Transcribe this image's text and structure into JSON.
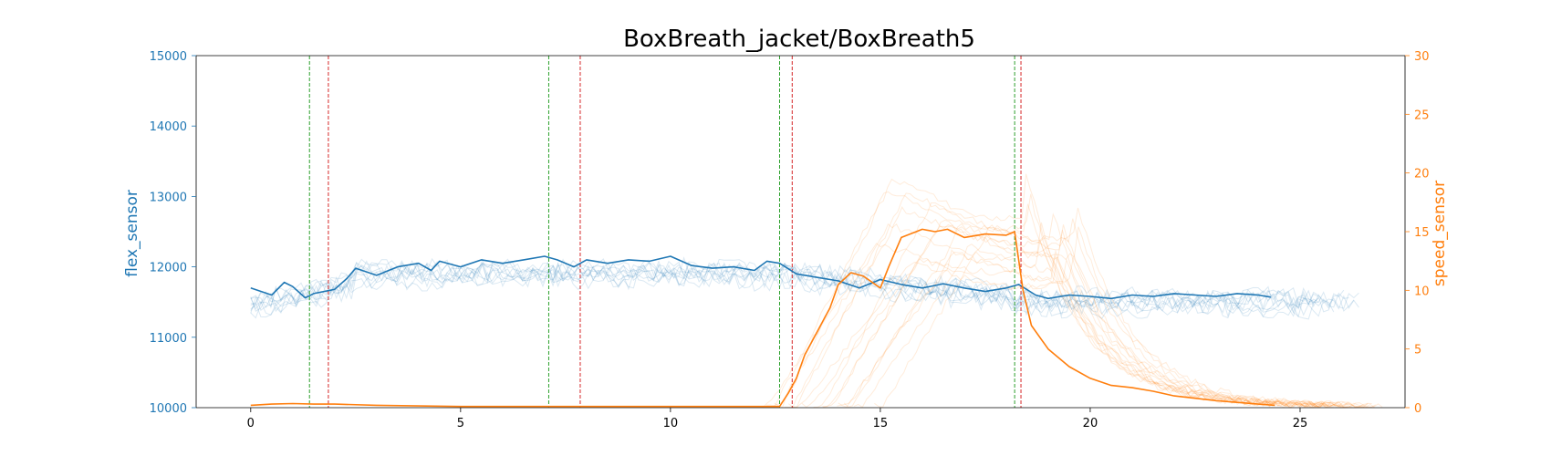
{
  "chart_data": {
    "type": "line",
    "title": "BoxBreath_jacket/BoxBreath5",
    "xlabel": "",
    "ylabel_left": "flex_sensor",
    "ylabel_right": "speed_sensor",
    "xlim": [
      -1.3,
      27.5
    ],
    "ylim_left": [
      10000,
      15000
    ],
    "ylim_right": [
      0,
      30
    ],
    "x_ticks": [
      0,
      5,
      10,
      15,
      20,
      25
    ],
    "y_left_ticks": [
      10000,
      11000,
      12000,
      13000,
      14000,
      15000
    ],
    "y_right_ticks": [
      0,
      5,
      10,
      15,
      20,
      25,
      30
    ],
    "grid": false,
    "colors": {
      "flex": "#1f77b4",
      "speed": "#ff7f0e",
      "start_marker": "#2ca02c",
      "end_marker": "#d62728",
      "spine": "#000000"
    },
    "markers_green": [
      1.4,
      7.1,
      12.6,
      18.2
    ],
    "markers_red": [
      1.85,
      7.85,
      12.9,
      18.35
    ],
    "series": [
      {
        "axis": "left",
        "x": [
          0,
          0.5,
          0.8,
          1.0,
          1.3,
          1.5,
          2.0,
          2.3,
          2.5,
          3.0,
          3.5,
          4.0,
          4.3,
          4.5,
          5.0,
          5.5,
          6.0,
          6.5,
          7.0,
          7.3,
          7.7,
          8.0,
          8.5,
          9.0,
          9.5,
          10.0,
          10.5,
          11.0,
          11.5,
          12.0,
          12.3,
          12.6,
          13.0,
          13.5,
          14.0,
          14.5,
          15.0,
          15.5,
          16.0,
          16.5,
          17.0,
          17.5,
          18.0,
          18.3,
          18.7,
          19.0,
          19.5,
          20.0,
          20.5,
          21.0,
          21.5,
          22.0,
          22.5,
          23.0,
          23.5,
          24.0,
          24.3
        ],
        "values": [
          11700,
          11600,
          11780,
          11720,
          11560,
          11620,
          11680,
          11840,
          11980,
          11880,
          12000,
          12050,
          11950,
          12080,
          12000,
          12100,
          12050,
          12100,
          12150,
          12100,
          12000,
          12100,
          12050,
          12100,
          12080,
          12150,
          12020,
          11980,
          12000,
          11950,
          12080,
          12050,
          11900,
          11850,
          11800,
          11700,
          11820,
          11750,
          11700,
          11760,
          11700,
          11650,
          11700,
          11750,
          11600,
          11550,
          11600,
          11580,
          11550,
          11600,
          11580,
          11620,
          11600,
          11580,
          11620,
          11600,
          11570
        ]
      },
      {
        "axis": "right",
        "x": [
          0,
          0.5,
          1.0,
          1.5,
          2.0,
          3.0,
          4.0,
          5.0,
          6.0,
          7.0,
          8.0,
          9.0,
          10.0,
          11.0,
          12.0,
          12.6,
          12.8,
          13.0,
          13.2,
          13.5,
          13.8,
          14.0,
          14.3,
          14.6,
          15.0,
          15.2,
          15.5,
          16.0,
          16.3,
          16.6,
          17.0,
          17.5,
          18.0,
          18.2,
          18.4,
          18.6,
          19.0,
          19.5,
          20.0,
          20.5,
          21.0,
          21.5,
          22.0,
          22.5,
          23.0,
          23.5,
          24.0,
          24.4
        ],
        "values": [
          0.2,
          0.3,
          0.35,
          0.3,
          0.3,
          0.2,
          0.15,
          0.1,
          0.1,
          0.1,
          0.1,
          0.1,
          0.1,
          0.1,
          0.1,
          0.1,
          1.2,
          2.5,
          4.5,
          6.5,
          8.5,
          10.5,
          11.5,
          11.2,
          10.2,
          12.0,
          14.5,
          15.2,
          15.0,
          15.2,
          14.5,
          14.8,
          14.7,
          15.0,
          10.0,
          7.0,
          5.0,
          3.5,
          2.5,
          1.9,
          1.7,
          1.4,
          1.0,
          0.8,
          0.6,
          0.45,
          0.3,
          0.2
        ]
      }
    ]
  }
}
